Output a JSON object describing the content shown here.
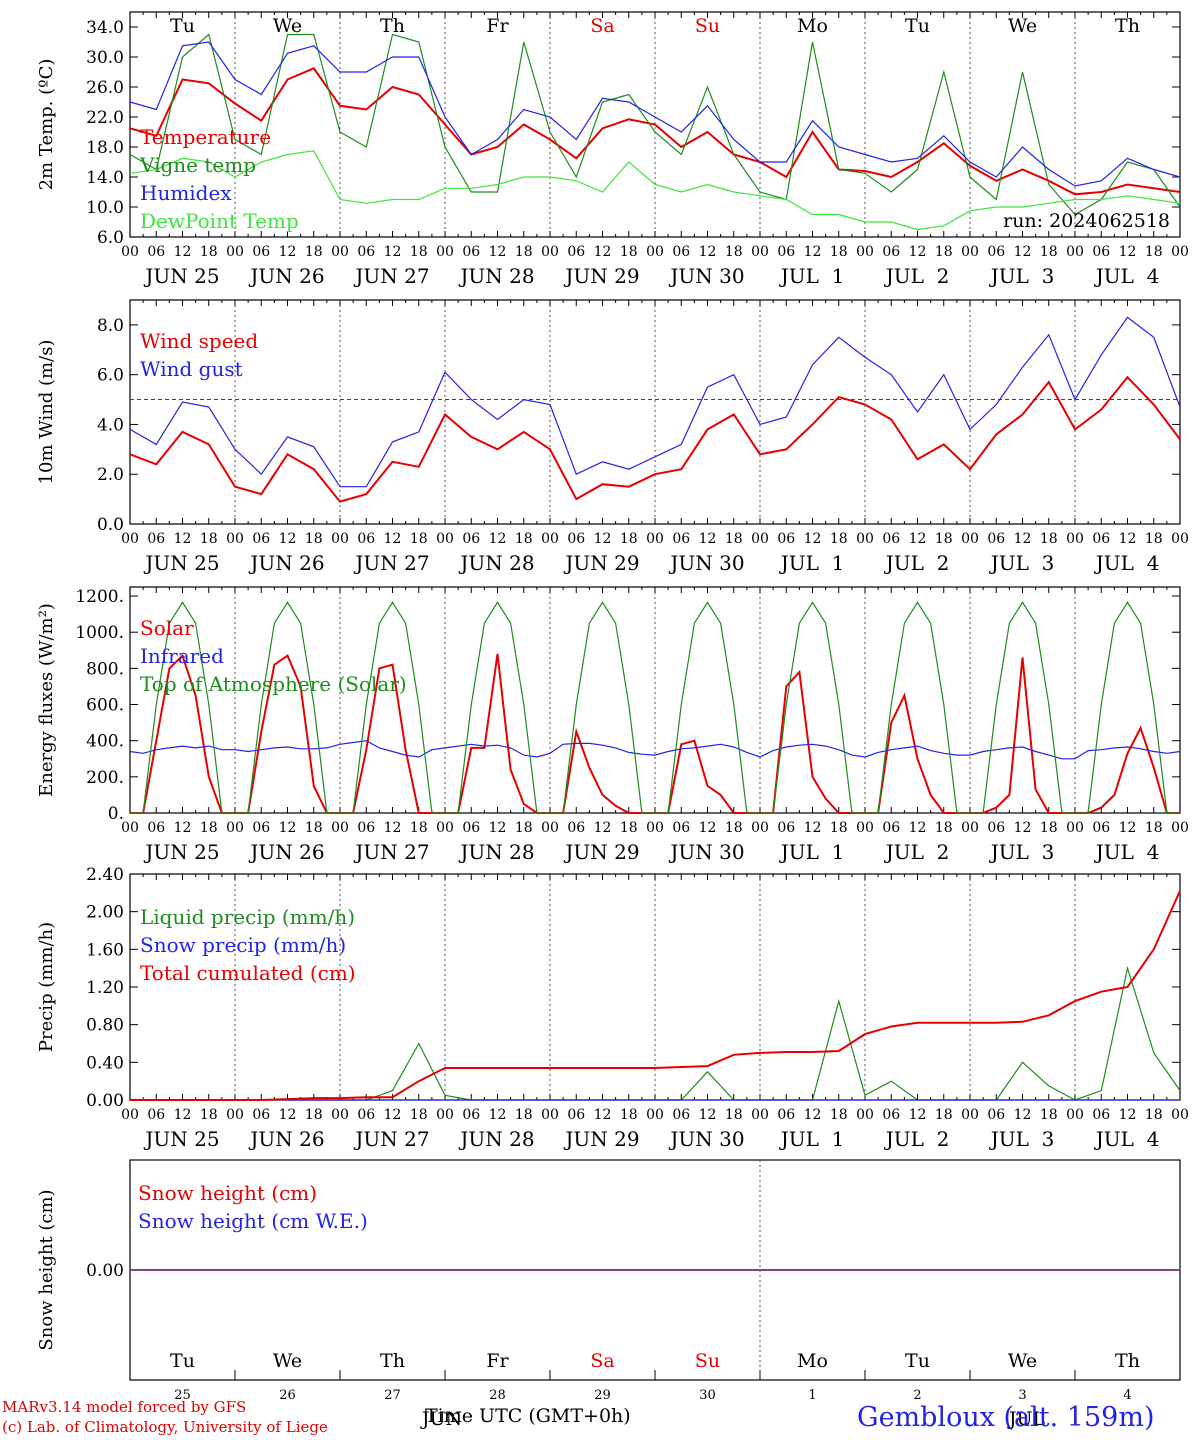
{
  "run_label": "run: 2024062518",
  "day_names": [
    "Tu",
    "We",
    "Th",
    "Fr",
    "Sa",
    "Su",
    "Mo",
    "Tu",
    "We",
    "Th"
  ],
  "weekend_days": [
    4,
    5
  ],
  "day_numbers": [
    "25",
    "26",
    "27",
    "28",
    "29",
    "30",
    "1",
    "2",
    "3",
    "4"
  ],
  "date_labels": [
    "JUN 25",
    "JUN 26",
    "JUN 27",
    "JUN 28",
    "JUN 29",
    "JUN 30",
    "JUL  1",
    "JUL  2",
    "JUL  3",
    "JUL  4"
  ],
  "hour_ticks": [
    "00",
    "06",
    "12",
    "18"
  ],
  "month_labels": [
    "JUN",
    "JUL"
  ],
  "xlabel": "Time UTC (GMT+0h)",
  "footer": {
    "line1": "MARv3.14 model forced by GFS",
    "line2": "(c) Lab. of Climatology, University of Liege",
    "station": "Gembloux (alt. 159m)"
  },
  "colors": {
    "red": "#e60000",
    "green": "#1e8c1e",
    "blue": "#2323e6",
    "lightgreen": "#3ce63c",
    "purple": "#8c3c8c"
  },
  "chart_data": [
    {
      "type": "line",
      "id": "temp",
      "ylabel": "2m Temp. (ºC)",
      "ylim": [
        6,
        36
      ],
      "yticks": [
        "6.0",
        "10.0",
        "14.0",
        "18.0",
        "22.0",
        "26.0",
        "30.0",
        "34.0"
      ],
      "x_hours": [
        0,
        6,
        12,
        18,
        24,
        30,
        36,
        42,
        48,
        54,
        60,
        66,
        72,
        78,
        84,
        90,
        96,
        102,
        108,
        114,
        120,
        126,
        132,
        138,
        144,
        150,
        156,
        162,
        168,
        174,
        180,
        186,
        192,
        198,
        204,
        210,
        216,
        222,
        228,
        234,
        240
      ],
      "series": [
        {
          "name": "Temperature",
          "color": "red",
          "values": [
            20.5,
            19.5,
            27.0,
            26.5,
            23.8,
            21.5,
            27.0,
            28.5,
            23.5,
            23.0,
            26.0,
            25.0,
            21.0,
            17.0,
            18.0,
            21.0,
            19.0,
            16.5,
            20.5,
            21.7,
            21.0,
            18.0,
            20.0,
            17.0,
            16.0,
            14.0,
            20.0,
            15.0,
            14.8,
            14.0,
            16.0,
            18.5,
            15.5,
            13.5,
            15.0,
            13.5,
            11.7,
            12.0,
            13.0,
            12.5,
            12.0
          ]
        },
        {
          "name": "Vigne temp",
          "color": "green",
          "values": [
            17.0,
            15.0,
            30.0,
            33.0,
            19.0,
            17.0,
            33.0,
            33.0,
            20.0,
            18.0,
            33.0,
            32.0,
            18.0,
            12.0,
            12.0,
            32.0,
            20.0,
            14.0,
            24.0,
            25.0,
            20.0,
            17.0,
            26.0,
            17.0,
            12.0,
            11.0,
            32.0,
            15.0,
            14.5,
            12.0,
            15.0,
            28.0,
            14.0,
            11.0,
            28.0,
            13.0,
            9.0,
            11.0,
            16.0,
            15.0,
            10.0
          ]
        },
        {
          "name": "Humidex",
          "color": "blue",
          "values": [
            24.0,
            23.0,
            31.5,
            32.0,
            27.0,
            25.0,
            30.5,
            31.5,
            28.0,
            28.0,
            30.0,
            30.0,
            22.0,
            17.0,
            19.0,
            23.0,
            22.0,
            19.0,
            24.5,
            24.0,
            22.0,
            20.0,
            23.5,
            19.0,
            16.0,
            16.0,
            21.5,
            18.0,
            17.0,
            16.0,
            16.5,
            19.5,
            16.0,
            14.0,
            18.0,
            15.0,
            12.8,
            13.5,
            16.5,
            15.0,
            14.0
          ]
        },
        {
          "name": "DewPoint Temp",
          "color": "lightgreen",
          "values": [
            14.5,
            15.0,
            16.5,
            16.0,
            14.0,
            16.0,
            17.0,
            17.5,
            11.0,
            10.5,
            11.0,
            11.0,
            12.5,
            12.5,
            13.0,
            14.0,
            14.0,
            13.5,
            12.0,
            16.0,
            13.0,
            12.0,
            13.0,
            12.0,
            11.5,
            11.0,
            9.0,
            9.0,
            8.0,
            8.0,
            7.0,
            7.5,
            9.5,
            10.0,
            10.0,
            10.5,
            11.0,
            11.0,
            11.5,
            11.0,
            10.5
          ]
        }
      ],
      "annotations": [
        {
          "text": "run: 2024062518",
          "position": "bottom-right"
        }
      ],
      "legend_position": "left",
      "grid": "dashed day separators"
    },
    {
      "type": "line",
      "id": "wind",
      "ylabel": "10m Wind (m/s)",
      "ylim": [
        0,
        9
      ],
      "yticks": [
        "0.0",
        "2.0",
        "4.0",
        "6.0",
        "8.0"
      ],
      "reference_line": 5.0,
      "x_hours": [
        0,
        6,
        12,
        18,
        24,
        30,
        36,
        42,
        48,
        54,
        60,
        66,
        72,
        78,
        84,
        90,
        96,
        102,
        108,
        114,
        120,
        126,
        132,
        138,
        144,
        150,
        156,
        162,
        168,
        174,
        180,
        186,
        192,
        198,
        204,
        210,
        216,
        222,
        228,
        234,
        240
      ],
      "series": [
        {
          "name": "Wind speed",
          "color": "red",
          "values": [
            2.8,
            2.4,
            3.7,
            3.2,
            1.5,
            1.2,
            2.8,
            2.2,
            0.9,
            1.2,
            2.5,
            2.3,
            4.4,
            3.5,
            3.0,
            3.7,
            3.0,
            1.0,
            1.6,
            1.5,
            2.0,
            2.2,
            3.8,
            4.4,
            2.8,
            3.0,
            4.0,
            5.1,
            4.8,
            4.2,
            2.6,
            3.2,
            2.2,
            3.6,
            4.4,
            5.7,
            3.8,
            4.6,
            5.9,
            4.8,
            3.4
          ]
        },
        {
          "name": "Wind gust",
          "color": "blue",
          "values": [
            3.8,
            3.2,
            4.9,
            4.7,
            3.0,
            2.0,
            3.5,
            3.1,
            1.5,
            1.5,
            3.3,
            3.7,
            6.1,
            5.0,
            4.2,
            5.0,
            4.8,
            2.0,
            2.5,
            2.2,
            2.7,
            3.2,
            5.5,
            6.0,
            4.0,
            4.3,
            6.4,
            7.5,
            6.7,
            6.0,
            4.5,
            6.0,
            3.8,
            4.8,
            6.3,
            7.6,
            5.0,
            6.8,
            8.3,
            7.5,
            4.7
          ]
        }
      ],
      "legend_position": "left"
    },
    {
      "type": "line",
      "id": "energy",
      "ylabel": "Energy fluxes (W/m²)",
      "ylim": [
        0,
        1250
      ],
      "yticks": [
        "0.",
        "200.",
        "400.",
        "600.",
        "800.",
        "1000.",
        "1200."
      ],
      "x_hours": [
        0,
        3,
        6,
        9,
        12,
        15,
        18,
        21,
        24,
        27,
        30,
        33,
        36,
        39,
        42,
        45,
        48,
        51,
        54,
        57,
        60,
        63,
        66,
        69,
        72,
        75,
        78,
        81,
        84,
        87,
        90,
        93,
        96,
        99,
        102,
        105,
        108,
        111,
        114,
        117,
        120,
        123,
        126,
        129,
        132,
        135,
        138,
        141,
        144,
        147,
        150,
        153,
        156,
        159,
        162,
        165,
        168,
        171,
        174,
        177,
        180,
        183,
        186,
        189,
        192,
        195,
        198,
        201,
        204,
        207,
        210,
        213,
        216,
        219,
        222,
        225,
        228,
        231,
        234,
        237,
        240
      ],
      "series": [
        {
          "name": "Solar",
          "color": "red",
          "values": [
            0,
            0,
            400,
            800,
            870,
            650,
            200,
            0,
            0,
            0,
            450,
            820,
            870,
            700,
            150,
            0,
            0,
            0,
            350,
            800,
            820,
            350,
            0,
            0,
            0,
            0,
            360,
            360,
            880,
            240,
            50,
            0,
            0,
            0,
            450,
            250,
            100,
            40,
            0,
            0,
            0,
            0,
            380,
            400,
            150,
            100,
            0,
            0,
            0,
            0,
            700,
            780,
            200,
            80,
            0,
            0,
            0,
            0,
            500,
            650,
            300,
            100,
            0,
            0,
            0,
            0,
            30,
            100,
            860,
            130,
            0,
            0,
            0,
            0,
            30,
            100,
            330,
            470,
            250,
            0,
            0
          ]
        },
        {
          "name": "Infrared",
          "color": "blue",
          "values": [
            340,
            330,
            350,
            360,
            370,
            360,
            370,
            350,
            350,
            340,
            350,
            360,
            365,
            355,
            355,
            360,
            380,
            390,
            400,
            360,
            340,
            320,
            310,
            350,
            360,
            370,
            380,
            370,
            375,
            360,
            320,
            310,
            330,
            380,
            385,
            385,
            375,
            360,
            335,
            325,
            320,
            340,
            355,
            360,
            370,
            380,
            365,
            335,
            310,
            345,
            365,
            375,
            380,
            370,
            350,
            320,
            310,
            335,
            350,
            360,
            370,
            345,
            330,
            320,
            320,
            340,
            350,
            360,
            365,
            340,
            320,
            300,
            300,
            345,
            350,
            360,
            365,
            355,
            340,
            330,
            340
          ]
        },
        {
          "name": "Top of Atmosphere (Solar)",
          "color": "green",
          "values": [
            0,
            0,
            600,
            1050,
            1165,
            1050,
            600,
            0,
            0,
            0,
            600,
            1050,
            1165,
            1050,
            600,
            0,
            0,
            0,
            600,
            1050,
            1165,
            1050,
            600,
            0,
            0,
            0,
            600,
            1050,
            1165,
            1050,
            600,
            0,
            0,
            0,
            600,
            1050,
            1165,
            1050,
            600,
            0,
            0,
            0,
            600,
            1050,
            1165,
            1050,
            600,
            0,
            0,
            0,
            600,
            1050,
            1165,
            1050,
            600,
            0,
            0,
            0,
            600,
            1050,
            1165,
            1050,
            600,
            0,
            0,
            0,
            600,
            1050,
            1165,
            1050,
            600,
            0,
            0,
            0,
            600,
            1050,
            1165,
            1050,
            600,
            0,
            0
          ]
        }
      ],
      "legend_position": "left"
    },
    {
      "type": "line",
      "id": "precip",
      "ylabel": "Precip (mm/h)",
      "ylim": [
        0,
        2.4
      ],
      "yticks": [
        "0.00",
        "0.40",
        "0.80",
        "1.20",
        "1.60",
        "2.00",
        "2.40"
      ],
      "x_hours": [
        0,
        6,
        12,
        18,
        24,
        30,
        36,
        42,
        48,
        54,
        60,
        66,
        72,
        78,
        84,
        90,
        96,
        102,
        108,
        114,
        120,
        126,
        132,
        138,
        144,
        150,
        156,
        162,
        168,
        174,
        180,
        186,
        192,
        198,
        204,
        210,
        216,
        222,
        228,
        234,
        240
      ],
      "series": [
        {
          "name": "Liquid precip (mm/h)",
          "color": "green",
          "values": [
            0,
            0,
            0,
            0,
            0,
            0,
            0,
            0,
            0,
            0,
            0.1,
            0.6,
            0.05,
            0,
            0,
            0,
            0,
            0,
            0,
            0,
            0,
            0,
            0.3,
            0,
            0,
            0,
            0,
            1.05,
            0.05,
            0.2,
            0,
            0,
            0,
            0,
            0.4,
            0.15,
            0,
            0.1,
            1.4,
            0.5,
            0.1
          ]
        },
        {
          "name": "Snow precip (mm/h)",
          "color": "blue",
          "values": [
            0,
            0,
            0,
            0,
            0,
            0,
            0,
            0,
            0,
            0,
            0,
            0,
            0,
            0,
            0,
            0,
            0,
            0,
            0,
            0,
            0,
            0,
            0,
            0,
            0,
            0,
            0,
            0,
            0,
            0,
            0,
            0,
            0,
            0,
            0,
            0,
            0,
            0,
            0,
            0,
            0
          ]
        },
        {
          "name": "Total cumulated (cm)",
          "color": "red",
          "values": [
            0,
            0,
            0,
            0,
            0,
            0,
            0.01,
            0.02,
            0.02,
            0.03,
            0.03,
            0.2,
            0.34,
            0.34,
            0.34,
            0.34,
            0.34,
            0.34,
            0.34,
            0.34,
            0.34,
            0.35,
            0.36,
            0.48,
            0.5,
            0.51,
            0.51,
            0.52,
            0.7,
            0.78,
            0.82,
            0.82,
            0.82,
            0.82,
            0.83,
            0.9,
            1.05,
            1.15,
            1.2,
            1.6,
            2.22
          ]
        }
      ],
      "legend_position": "left"
    },
    {
      "type": "line",
      "id": "snow",
      "ylabel": "Snow height (cm)",
      "ylim": [
        -1,
        1
      ],
      "yticks": [
        "0.00"
      ],
      "x_hours": [
        0,
        240
      ],
      "series": [
        {
          "name": "Snow height (cm)",
          "color": "red",
          "values": [
            0,
            0
          ]
        },
        {
          "name": "Snow height (cm W.E.)",
          "color": "blue",
          "values": [
            0,
            0
          ]
        }
      ],
      "legend_position": "left"
    }
  ]
}
